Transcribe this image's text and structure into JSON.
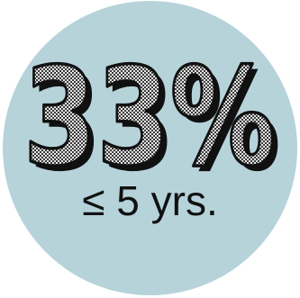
{
  "stat": {
    "value": "33%",
    "caption": "≤ 5 yrs."
  },
  "colors": {
    "circle": "#b6d3da",
    "digit_outline": "#111111",
    "digit_fill_dark": "#3a3a3a",
    "digit_fill_light": "#e6e6e6"
  }
}
